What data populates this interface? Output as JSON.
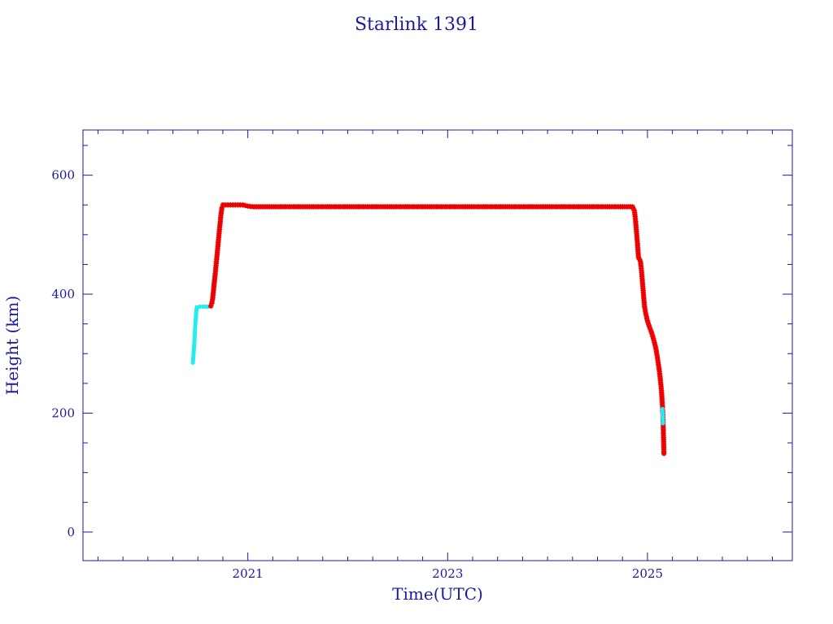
{
  "chart_data": {
    "type": "scatter",
    "title": "Starlink 1391",
    "xlabel": "Time(UTC)",
    "ylabel": "Height (km)",
    "xlim": [
      2019.35,
      2026.45
    ],
    "ylim": [
      -48,
      676
    ],
    "x_ticks": [
      {
        "value": 2021,
        "label": "2021"
      },
      {
        "value": 2023,
        "label": "2023"
      },
      {
        "value": 2025,
        "label": "2025"
      }
    ],
    "y_ticks": [
      {
        "value": 0,
        "label": "0"
      },
      {
        "value": 200,
        "label": "200"
      },
      {
        "value": 400,
        "label": "400"
      },
      {
        "value": 600,
        "label": "600"
      }
    ],
    "x_minor_step": 0.25,
    "y_minor_step": 50,
    "grid": false,
    "colors": {
      "axis": "#1a1aa0",
      "text": "#1a1aa0",
      "series_red": "#ee0000",
      "series_cyan": "#22eeee",
      "connector": "#222222"
    },
    "series": [
      {
        "color_key": "series_cyan",
        "marker": "dot",
        "points": [
          [
            2020.45,
            285
          ],
          [
            2020.455,
            295
          ],
          [
            2020.46,
            308
          ],
          [
            2020.465,
            320
          ],
          [
            2020.47,
            335
          ],
          [
            2020.475,
            350
          ],
          [
            2020.48,
            363
          ],
          [
            2020.485,
            372
          ],
          [
            2020.49,
            378
          ],
          [
            2020.52,
            379
          ],
          [
            2020.55,
            379
          ],
          [
            2020.58,
            379
          ],
          [
            2020.6,
            379
          ],
          [
            2020.625,
            380
          ],
          [
            2020.645,
            390
          ],
          [
            2020.655,
            410
          ],
          [
            2020.665,
            430
          ]
        ]
      },
      {
        "color_key": "series_red",
        "marker": "star",
        "points": [
          [
            2020.63,
            380
          ],
          [
            2020.64,
            385
          ],
          [
            2020.65,
            395
          ],
          [
            2020.66,
            412
          ],
          [
            2020.67,
            428
          ],
          [
            2020.68,
            445
          ],
          [
            2020.69,
            462
          ],
          [
            2020.7,
            480
          ],
          [
            2020.71,
            498
          ],
          [
            2020.72,
            515
          ],
          [
            2020.73,
            532
          ],
          [
            2020.74,
            545
          ],
          [
            2020.75,
            550
          ],
          [
            2020.8,
            550
          ],
          [
            2020.85,
            550
          ],
          [
            2020.9,
            550
          ],
          [
            2020.95,
            550
          ],
          [
            2021.0,
            548
          ],
          [
            2021.05,
            547
          ],
          [
            2021.2,
            547
          ],
          [
            2021.4,
            547
          ],
          [
            2021.6,
            547
          ],
          [
            2021.8,
            547
          ],
          [
            2022.0,
            547
          ],
          [
            2022.2,
            547
          ],
          [
            2022.4,
            547
          ],
          [
            2022.6,
            547
          ],
          [
            2022.8,
            547
          ],
          [
            2023.0,
            547
          ],
          [
            2023.2,
            547
          ],
          [
            2023.4,
            547
          ],
          [
            2023.6,
            547
          ],
          [
            2023.8,
            547
          ],
          [
            2024.0,
            547
          ],
          [
            2024.2,
            547
          ],
          [
            2024.4,
            547
          ],
          [
            2024.6,
            547
          ],
          [
            2024.75,
            547
          ],
          [
            2024.85,
            547
          ],
          [
            2024.87,
            540
          ],
          [
            2024.88,
            525
          ],
          [
            2024.89,
            505
          ],
          [
            2024.9,
            485
          ],
          [
            2024.91,
            462
          ],
          [
            2024.93,
            455
          ],
          [
            2024.94,
            440
          ],
          [
            2024.95,
            420
          ],
          [
            2024.96,
            400
          ],
          [
            2024.97,
            380
          ],
          [
            2024.98,
            370
          ],
          [
            2024.99,
            362
          ],
          [
            2025.0,
            355
          ],
          [
            2025.02,
            345
          ],
          [
            2025.04,
            336
          ],
          [
            2025.06,
            325
          ],
          [
            2025.08,
            312
          ],
          [
            2025.09,
            303
          ],
          [
            2025.1,
            293
          ],
          [
            2025.11,
            282
          ],
          [
            2025.12,
            270
          ],
          [
            2025.13,
            255
          ],
          [
            2025.14,
            238
          ],
          [
            2025.145,
            225
          ],
          [
            2025.15,
            212
          ],
          [
            2025.155,
            195
          ],
          [
            2025.16,
            165
          ],
          [
            2025.165,
            132
          ]
        ]
      },
      {
        "color_key": "series_cyan",
        "marker": "dot",
        "points": [
          [
            2025.15,
            207
          ],
          [
            2025.153,
            195
          ],
          [
            2025.155,
            183
          ]
        ]
      }
    ]
  }
}
